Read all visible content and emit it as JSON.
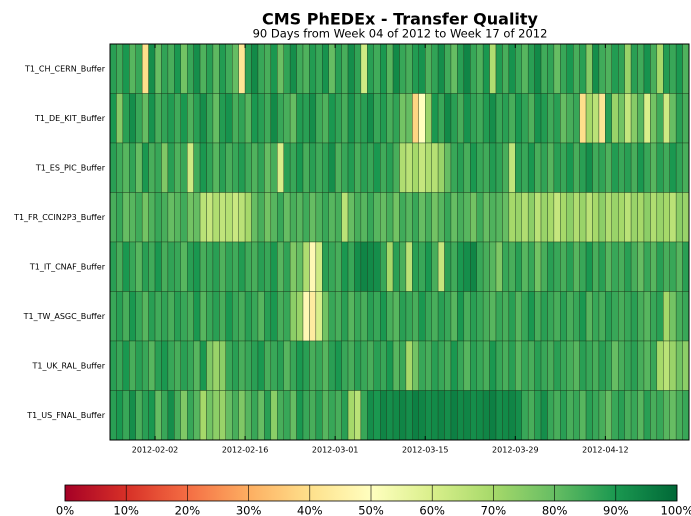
{
  "chart_data": {
    "type": "heatmap",
    "title": "CMS PhEDEx - Transfer Quality",
    "subtitle": "90 Days from Week 04 of 2012 to Week 17 of 2012",
    "rows": [
      "T1_CH_CERN_Buffer",
      "T1_DE_KIT_Buffer",
      "T1_ES_PIC_Buffer",
      "T1_FR_CCIN2P3_Buffer",
      "T1_IT_CNAF_Buffer",
      "T1_TW_ASGC_Buffer",
      "T1_UK_RAL_Buffer",
      "T1_US_FNAL_Buffer"
    ],
    "xlim": [
      0,
      90
    ],
    "xticks": [
      {
        "value": 7,
        "label": "2012-02-02"
      },
      {
        "value": 21,
        "label": "2012-02-16"
      },
      {
        "value": 35,
        "label": "2012-03-01"
      },
      {
        "value": 49,
        "label": "2012-03-15"
      },
      {
        "value": 63,
        "label": "2012-03-29"
      },
      {
        "value": 77,
        "label": "2012-04-12"
      }
    ],
    "zlim": [
      0,
      100
    ],
    "zticks": [
      {
        "value": 0,
        "label": "0%"
      },
      {
        "value": 10,
        "label": "10%"
      },
      {
        "value": 20,
        "label": "20%"
      },
      {
        "value": 30,
        "label": "30%"
      },
      {
        "value": 40,
        "label": "40%"
      },
      {
        "value": 50,
        "label": "50%"
      },
      {
        "value": 60,
        "label": "60%"
      },
      {
        "value": 70,
        "label": "70%"
      },
      {
        "value": 80,
        "label": "80%"
      },
      {
        "value": 90,
        "label": "90%"
      },
      {
        "value": 100,
        "label": "100%"
      }
    ],
    "colormap": [
      "#a50026",
      "#d73027",
      "#f46d43",
      "#fdae61",
      "#fee08b",
      "#ffffbf",
      "#d9ef8b",
      "#a6d96a",
      "#66bd63",
      "#1a9850",
      "#006837"
    ],
    "values": [
      [
        88,
        85,
        90,
        82,
        86,
        40,
        92,
        80,
        87,
        84,
        90,
        78,
        86,
        92,
        83,
        88,
        81,
        89,
        85,
        80,
        42,
        88,
        93,
        86,
        84,
        90,
        79,
        87,
        92,
        85,
        83,
        89,
        86,
        91,
        80,
        88,
        84,
        92,
        87,
        62,
        88,
        85,
        90,
        82,
        93,
        86,
        84,
        89,
        91,
        83,
        87,
        92,
        85,
        80,
        88,
        94,
        86,
        83,
        90,
        68,
        89,
        84,
        91,
        86,
        82,
        88,
        93,
        85,
        87,
        80,
        86,
        90,
        84,
        88,
        75,
        92,
        85,
        83,
        89,
        87,
        72,
        88,
        85,
        91,
        84,
        70,
        89,
        86,
        90,
        83
      ],
      [
        90,
        75,
        88,
        92,
        86,
        80,
        91,
        84,
        87,
        89,
        85,
        90,
        83,
        88,
        92,
        86,
        80,
        89,
        91,
        84,
        87,
        82,
        90,
        88,
        85,
        93,
        86,
        84,
        80,
        89,
        88,
        92,
        85,
        83,
        90,
        87,
        84,
        91,
        86,
        88,
        92,
        86,
        89,
        84,
        87,
        78,
        80,
        38,
        50,
        72,
        90,
        86,
        93,
        88,
        84,
        91,
        87,
        85,
        89,
        92,
        86,
        88,
        84,
        90,
        87,
        83,
        91,
        89,
        85,
        88,
        80,
        84,
        86,
        40,
        70,
        66,
        42,
        88,
        72,
        78,
        64,
        75,
        82,
        60,
        78,
        85,
        62,
        80,
        88,
        84
      ],
      [
        88,
        85,
        82,
        87,
        80,
        90,
        84,
        86,
        76,
        88,
        83,
        86,
        62,
        85,
        90,
        87,
        82,
        88,
        84,
        86,
        89,
        85,
        83,
        87,
        80,
        84,
        60,
        88,
        86,
        90,
        84,
        88,
        85,
        87,
        92,
        83,
        86,
        89,
        84,
        88,
        86,
        90,
        85,
        88,
        84,
        68,
        66,
        70,
        64,
        68,
        67,
        72,
        80,
        86,
        88,
        84,
        90,
        86,
        85,
        89,
        87,
        84,
        65,
        88,
        86,
        90,
        84,
        87,
        82,
        88,
        86,
        90,
        84,
        88,
        92,
        85,
        87,
        83,
        89,
        86,
        88,
        84,
        90,
        86,
        82,
        88,
        85,
        90,
        87,
        84
      ],
      [
        84,
        86,
        80,
        82,
        85,
        78,
        83,
        86,
        84,
        80,
        82,
        85,
        78,
        80,
        66,
        64,
        68,
        65,
        67,
        63,
        66,
        70,
        80,
        84,
        78,
        82,
        86,
        80,
        84,
        82,
        85,
        80,
        83,
        86,
        82,
        84,
        66,
        80,
        84,
        82,
        86,
        82,
        80,
        84,
        78,
        85,
        82,
        86,
        80,
        84,
        78,
        82,
        86,
        80,
        84,
        82,
        78,
        85,
        80,
        83,
        82,
        80,
        70,
        72,
        68,
        74,
        66,
        72,
        70,
        64,
        70,
        74,
        68,
        72,
        66,
        70,
        74,
        68,
        72,
        70,
        66,
        72,
        70,
        74,
        68,
        72,
        70,
        66,
        74,
        72
      ],
      [
        88,
        84,
        90,
        86,
        82,
        88,
        85,
        90,
        84,
        87,
        86,
        82,
        88,
        90,
        84,
        86,
        88,
        83,
        87,
        85,
        89,
        85,
        84,
        88,
        86,
        90,
        82,
        87,
        76,
        80,
        68,
        48,
        62,
        88,
        86,
        84,
        90,
        86,
        92,
        94,
        93,
        92,
        86,
        70,
        88,
        84,
        66,
        88,
        86,
        90,
        84,
        64,
        88,
        85,
        90,
        92,
        94,
        86,
        84,
        82,
        76,
        86,
        84,
        88,
        82,
        86,
        78,
        84,
        88,
        86,
        84,
        88,
        82,
        86,
        90,
        84,
        88,
        82,
        86,
        84,
        88,
        84,
        80,
        86,
        82,
        88,
        84,
        86,
        82,
        88
      ],
      [
        86,
        88,
        84,
        90,
        86,
        82,
        88,
        85,
        87,
        84,
        88,
        86,
        84,
        90,
        82,
        86,
        88,
        84,
        90,
        86,
        84,
        88,
        86,
        82,
        88,
        90,
        84,
        86,
        74,
        72,
        48,
        44,
        60,
        78,
        86,
        84,
        88,
        82,
        86,
        84,
        88,
        86,
        90,
        84,
        82,
        88,
        86,
        84,
        90,
        86,
        84,
        88,
        86,
        82,
        90,
        84,
        88,
        86,
        84,
        82,
        86,
        84,
        88,
        82,
        86,
        90,
        84,
        88,
        86,
        84,
        88,
        84,
        86,
        90,
        82,
        86,
        84,
        88,
        86,
        84,
        86,
        88,
        84,
        82,
        86,
        88,
        70,
        78,
        84,
        86
      ],
      [
        88,
        86,
        90,
        84,
        88,
        86,
        82,
        88,
        90,
        86,
        84,
        88,
        86,
        82,
        90,
        76,
        72,
        74,
        86,
        88,
        84,
        86,
        88,
        90,
        84,
        86,
        88,
        82,
        86,
        90,
        88,
        84,
        86,
        82,
        88,
        90,
        86,
        84,
        88,
        86,
        84,
        88,
        86,
        90,
        82,
        86,
        70,
        78,
        86,
        84,
        88,
        86,
        84,
        90,
        86,
        82,
        88,
        86,
        84,
        90,
        86,
        84,
        88,
        82,
        86,
        84,
        88,
        86,
        84,
        88,
        86,
        84,
        82,
        88,
        86,
        84,
        88,
        86,
        80,
        84,
        86,
        88,
        84,
        82,
        86,
        70,
        66,
        72,
        78,
        74
      ],
      [
        88,
        90,
        86,
        92,
        84,
        88,
        90,
        80,
        86,
        92,
        84,
        76,
        86,
        82,
        70,
        78,
        74,
        72,
        80,
        84,
        76,
        82,
        86,
        80,
        88,
        74,
        84,
        86,
        80,
        90,
        86,
        84,
        88,
        82,
        86,
        84,
        88,
        70,
        66,
        86,
        92,
        90,
        94,
        92,
        93,
        94,
        92,
        95,
        94,
        92,
        93,
        94,
        92,
        95,
        93,
        94,
        92,
        93,
        94,
        95,
        92,
        93,
        94,
        92,
        86,
        84,
        88,
        92,
        86,
        84,
        88,
        84,
        86,
        82,
        88,
        86,
        84,
        80,
        86,
        88,
        84,
        86,
        82,
        88,
        84,
        86,
        82,
        80,
        84,
        86
      ]
    ]
  }
}
